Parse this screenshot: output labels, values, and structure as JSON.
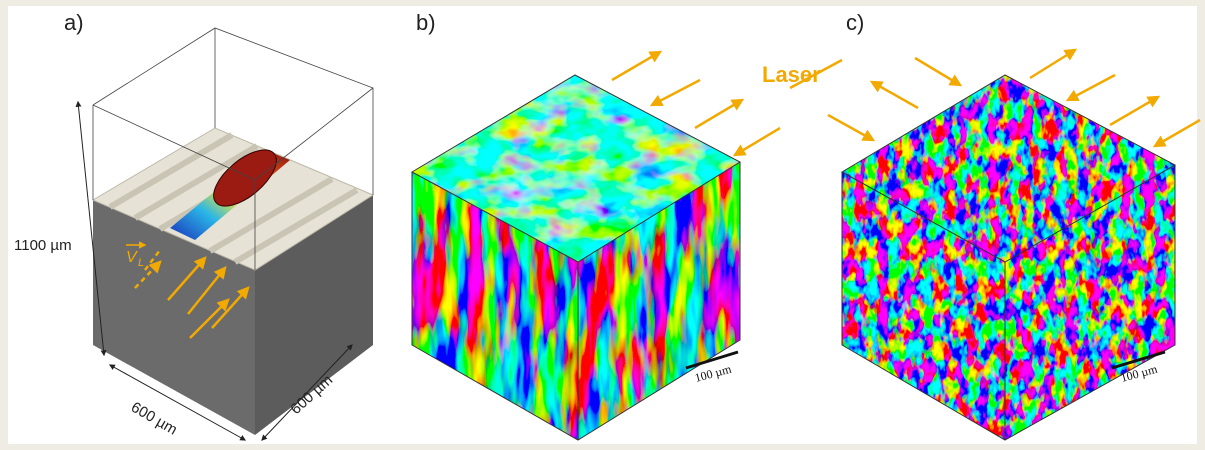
{
  "panels": [
    {
      "label": "a)",
      "height_label": "1100 µm",
      "width_label": "600 µm",
      "depth_label": "600 µm",
      "velocity_symbol": "V",
      "velocity_subscript": "L"
    },
    {
      "label": "b)",
      "scale_bar": "100 µm"
    },
    {
      "label": "c)",
      "scale_bar": "100 µm"
    }
  ],
  "laser_label": "Laser"
}
